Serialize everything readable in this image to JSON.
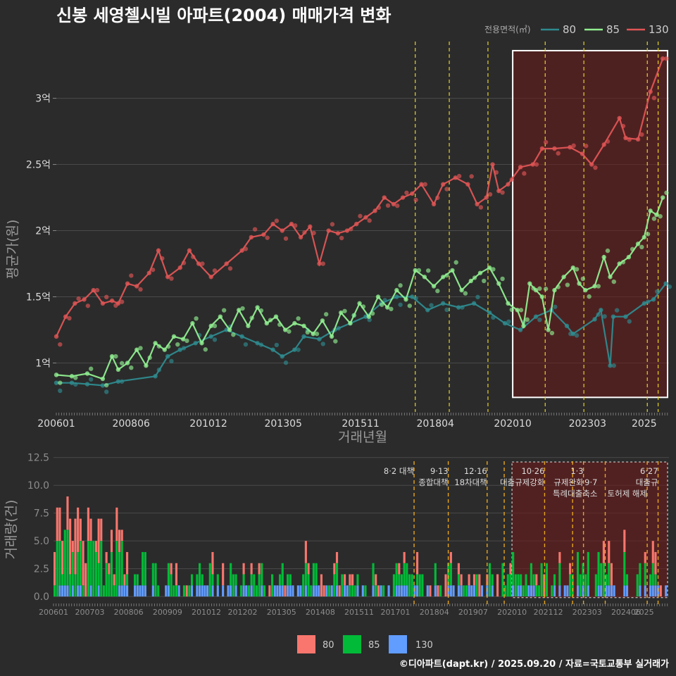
{
  "chart_data": [
    {
      "type": "line",
      "title": "신봉 세영첼시빌 아파트(2004) 매매가격 변화",
      "xlabel": "거래년월",
      "ylabel": "평균가(원)",
      "x_ticks": [
        "200601",
        "200806",
        "201012",
        "201305",
        "201511",
        "201804",
        "202010",
        "202303",
        "2025"
      ],
      "y_ticks": [
        {
          "value": 1.0,
          "label": "1억"
        },
        {
          "value": 1.5,
          "label": "1.5억"
        },
        {
          "value": 2.0,
          "label": "2억"
        },
        {
          "value": 2.5,
          "label": "2.5억"
        },
        {
          "value": 3.0,
          "label": "3억"
        }
      ],
      "x_range": [
        2006.0,
        2025.8
      ],
      "ylim": [
        0.63,
        3.45
      ],
      "legend_title": "전용면적(㎡)",
      "legend_position": "top-right",
      "vlines": [
        2017.6,
        2018.7,
        2019.95,
        2021.8,
        2023.05,
        2025.1,
        2025.45
      ],
      "highlight_range": [
        2020.75,
        2025.8
      ],
      "highlight_ylim": [
        0.74,
        3.36
      ],
      "series": [
        {
          "name": "80",
          "color": "#2e8b8f",
          "points": [
            [
              2006.0,
              0.85
            ],
            [
              2006.5,
              0.85
            ],
            [
              2007.0,
              0.84
            ],
            [
              2007.5,
              0.83
            ],
            [
              2008.0,
              0.86
            ],
            [
              2009.2,
              0.9
            ],
            [
              2009.6,
              1.05
            ],
            [
              2010.0,
              1.1
            ],
            [
              2010.5,
              1.15
            ],
            [
              2011.0,
              1.2
            ],
            [
              2011.5,
              1.25
            ],
            [
              2012.0,
              1.2
            ],
            [
              2012.5,
              1.15
            ],
            [
              2013.0,
              1.1
            ],
            [
              2013.3,
              1.05
            ],
            [
              2013.7,
              1.1
            ],
            [
              2014.0,
              1.2
            ],
            [
              2014.5,
              1.18
            ],
            [
              2015.0,
              1.25
            ],
            [
              2015.5,
              1.3
            ],
            [
              2016.0,
              1.35
            ],
            [
              2016.5,
              1.45
            ],
            [
              2017.0,
              1.5
            ],
            [
              2017.5,
              1.5
            ],
            [
              2018.0,
              1.4
            ],
            [
              2018.5,
              1.45
            ],
            [
              2019.0,
              1.42
            ],
            [
              2019.5,
              1.45
            ],
            [
              2020.0,
              1.38
            ],
            [
              2020.5,
              1.3
            ],
            [
              2021.0,
              1.25
            ],
            [
              2021.5,
              1.35
            ],
            [
              2022.0,
              1.4
            ],
            [
              2022.5,
              1.28
            ],
            [
              2022.7,
              1.22
            ],
            [
              2023.4,
              1.33
            ],
            [
              2023.6,
              1.4
            ],
            [
              2023.9,
              0.98
            ],
            [
              2024.0,
              1.35
            ],
            [
              2024.4,
              1.35
            ],
            [
              2025.0,
              1.45
            ],
            [
              2025.3,
              1.48
            ],
            [
              2025.7,
              1.6
            ]
          ]
        },
        {
          "name": "85",
          "color": "#90ee90",
          "points": [
            [
              2006.0,
              0.91
            ],
            [
              2006.5,
              0.9
            ],
            [
              2007.0,
              0.92
            ],
            [
              2007.5,
              0.88
            ],
            [
              2007.8,
              1.05
            ],
            [
              2008.0,
              0.95
            ],
            [
              2008.3,
              1.0
            ],
            [
              2008.6,
              1.1
            ],
            [
              2008.9,
              0.98
            ],
            [
              2009.2,
              1.15
            ],
            [
              2009.5,
              1.1
            ],
            [
              2009.8,
              1.2
            ],
            [
              2010.1,
              1.18
            ],
            [
              2010.4,
              1.3
            ],
            [
              2010.7,
              1.15
            ],
            [
              2011.0,
              1.28
            ],
            [
              2011.3,
              1.35
            ],
            [
              2011.6,
              1.25
            ],
            [
              2011.9,
              1.4
            ],
            [
              2012.2,
              1.28
            ],
            [
              2012.5,
              1.42
            ],
            [
              2012.8,
              1.3
            ],
            [
              2013.1,
              1.35
            ],
            [
              2013.4,
              1.25
            ],
            [
              2013.7,
              1.3
            ],
            [
              2014.0,
              1.28
            ],
            [
              2014.3,
              1.22
            ],
            [
              2014.6,
              1.32
            ],
            [
              2014.9,
              1.2
            ],
            [
              2015.2,
              1.38
            ],
            [
              2015.5,
              1.3
            ],
            [
              2015.8,
              1.45
            ],
            [
              2016.1,
              1.35
            ],
            [
              2016.4,
              1.5
            ],
            [
              2016.7,
              1.42
            ],
            [
              2017.0,
              1.55
            ],
            [
              2017.3,
              1.48
            ],
            [
              2017.6,
              1.7
            ],
            [
              2017.9,
              1.65
            ],
            [
              2018.2,
              1.58
            ],
            [
              2018.5,
              1.65
            ],
            [
              2018.8,
              1.7
            ],
            [
              2019.1,
              1.55
            ],
            [
              2019.4,
              1.62
            ],
            [
              2019.7,
              1.68
            ],
            [
              2020.0,
              1.72
            ],
            [
              2020.3,
              1.6
            ],
            [
              2020.6,
              1.45
            ],
            [
              2020.9,
              1.4
            ],
            [
              2021.1,
              1.28
            ],
            [
              2021.3,
              1.6
            ],
            [
              2021.5,
              1.55
            ],
            [
              2021.7,
              1.5
            ],
            [
              2021.9,
              1.25
            ],
            [
              2022.1,
              1.55
            ],
            [
              2022.4,
              1.65
            ],
            [
              2022.7,
              1.72
            ],
            [
              2022.9,
              1.6
            ],
            [
              2023.1,
              1.55
            ],
            [
              2023.4,
              1.58
            ],
            [
              2023.7,
              1.8
            ],
            [
              2023.9,
              1.65
            ],
            [
              2024.2,
              1.75
            ],
            [
              2024.5,
              1.8
            ],
            [
              2024.8,
              1.9
            ],
            [
              2025.0,
              1.95
            ],
            [
              2025.2,
              2.15
            ],
            [
              2025.4,
              2.12
            ],
            [
              2025.6,
              2.25
            ]
          ]
        },
        {
          "name": "130",
          "color": "#e05555",
          "points": [
            [
              2006.0,
              1.2
            ],
            [
              2006.3,
              1.35
            ],
            [
              2006.6,
              1.45
            ],
            [
              2006.9,
              1.48
            ],
            [
              2007.2,
              1.55
            ],
            [
              2007.5,
              1.45
            ],
            [
              2007.8,
              1.47
            ],
            [
              2008.0,
              1.45
            ],
            [
              2008.3,
              1.6
            ],
            [
              2008.6,
              1.58
            ],
            [
              2009.0,
              1.68
            ],
            [
              2009.3,
              1.85
            ],
            [
              2009.6,
              1.65
            ],
            [
              2010.0,
              1.72
            ],
            [
              2010.3,
              1.85
            ],
            [
              2010.6,
              1.75
            ],
            [
              2011.0,
              1.65
            ],
            [
              2011.5,
              1.75
            ],
            [
              2012.0,
              1.85
            ],
            [
              2012.3,
              1.95
            ],
            [
              2012.7,
              1.97
            ],
            [
              2013.0,
              2.05
            ],
            [
              2013.3,
              2.0
            ],
            [
              2013.6,
              2.05
            ],
            [
              2013.9,
              1.95
            ],
            [
              2014.2,
              2.03
            ],
            [
              2014.5,
              1.75
            ],
            [
              2014.8,
              2.0
            ],
            [
              2015.1,
              1.98
            ],
            [
              2015.4,
              2.0
            ],
            [
              2015.7,
              2.05
            ],
            [
              2016.0,
              2.1
            ],
            [
              2016.3,
              2.15
            ],
            [
              2016.6,
              2.25
            ],
            [
              2016.9,
              2.2
            ],
            [
              2017.2,
              2.25
            ],
            [
              2017.5,
              2.28
            ],
            [
              2017.8,
              2.35
            ],
            [
              2018.2,
              2.2
            ],
            [
              2018.5,
              2.35
            ],
            [
              2018.9,
              2.4
            ],
            [
              2019.3,
              2.35
            ],
            [
              2019.6,
              2.2
            ],
            [
              2019.9,
              2.25
            ],
            [
              2020.1,
              2.5
            ],
            [
              2020.3,
              2.3
            ],
            [
              2020.6,
              2.35
            ],
            [
              2021.0,
              2.48
            ],
            [
              2021.4,
              2.5
            ],
            [
              2021.7,
              2.62
            ],
            [
              2022.1,
              2.62
            ],
            [
              2022.6,
              2.63
            ],
            [
              2023.0,
              2.58
            ],
            [
              2023.3,
              2.5
            ],
            [
              2023.7,
              2.65
            ],
            [
              2024.2,
              2.85
            ],
            [
              2024.4,
              2.7
            ],
            [
              2024.8,
              2.69
            ],
            [
              2025.2,
              3.05
            ],
            [
              2025.6,
              3.3
            ]
          ]
        }
      ]
    },
    {
      "type": "bar",
      "title": "",
      "xlabel": "",
      "ylabel": "거래량(건)",
      "x_ticks": [
        "200601",
        "200703",
        "200806",
        "200909",
        "201012",
        "201202",
        "201305",
        "201408",
        "201511",
        "201701",
        "201804",
        "201907",
        "202010",
        "202112",
        "202303",
        "202406",
        "2025"
      ],
      "y_ticks": [
        0.0,
        2.5,
        5.0,
        7.5,
        10.0,
        12.5
      ],
      "x_range": [
        2006.0,
        2025.8
      ],
      "ylim": [
        -0.5,
        12.8
      ],
      "legend_position": "bottom",
      "series": [
        {
          "name": "80",
          "color": "#f8766d"
        },
        {
          "name": "85",
          "color": "#00ba38"
        },
        {
          "name": "130",
          "color": "#619cff"
        }
      ],
      "annotations": [
        {
          "x": 2017.6,
          "lines": [
            "8·2 대책"
          ]
        },
        {
          "x": 2018.7,
          "lines": [
            "9·13",
            "종합대책"
          ]
        },
        {
          "x": 2019.95,
          "lines": [
            "12·16",
            "18차대책"
          ]
        },
        {
          "x": 2021.8,
          "lines": [
            "10·26",
            "대출규제강화"
          ]
        },
        {
          "x": 2023.05,
          "lines": [
            "1·3",
            "규제완화"
          ]
        },
        {
          "x": 2023.5,
          "lines": [
            "",
            "9·7",
            "특례대출축소"
          ]
        },
        {
          "x": 2025.1,
          "lines": [
            "",
            "",
            "토허제 해제"
          ]
        },
        {
          "x": 2025.45,
          "lines": [
            "6·27",
            "대출규"
          ]
        }
      ],
      "vlines": [
        2017.6,
        2018.7,
        2019.95,
        2020.5,
        2021.8,
        2022.7,
        2023.05,
        2023.75,
        2025.1,
        2025.45
      ],
      "highlight_range": [
        2020.75,
        2025.8
      ]
    }
  ],
  "footer": "©디아파트(dapt.kr) / 2025.09.20 / 자료=국토교통부 실거래가"
}
